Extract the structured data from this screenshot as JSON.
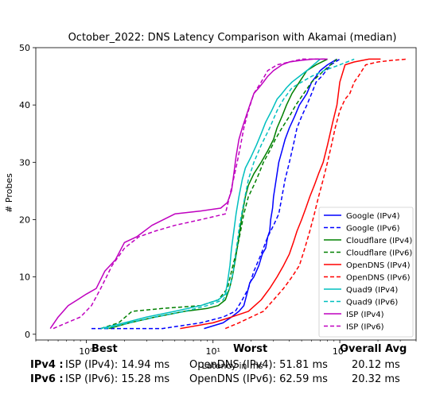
{
  "chart_data": {
    "type": "line",
    "title": "October_2022: DNS Latency Comparison with Akamai (median)",
    "xlabel": "Latency in ms",
    "ylabel": "# Probes",
    "xscale": "log",
    "xlim": [
      0.4,
      400
    ],
    "ylim": [
      -1,
      50
    ],
    "yticks": [
      0,
      10,
      20,
      30,
      40,
      50
    ],
    "xticks": [
      1,
      10,
      100
    ],
    "xtick_labels": [
      "10⁰",
      "10¹",
      "10²"
    ],
    "legend_position": "lower-right",
    "series": [
      {
        "name": "Google (IPv4)",
        "color": "#0000ff",
        "dash": "solid",
        "x": [
          8.5,
          12,
          14,
          16,
          17.5,
          18.5,
          19.5,
          21,
          23,
          24.5,
          26,
          27,
          28,
          28.5,
          29.5,
          30,
          31,
          32,
          33,
          35,
          37,
          40,
          44,
          48,
          55,
          60,
          65,
          70,
          80,
          95
        ],
        "y": [
          1,
          2,
          3,
          4,
          5,
          7,
          9,
          10,
          12,
          14,
          15,
          17,
          18,
          20,
          22,
          24,
          26,
          28,
          30,
          32,
          34,
          36,
          38,
          40,
          42,
          44,
          45,
          46,
          47,
          48
        ]
      },
      {
        "name": "Google (IPv6)",
        "color": "#0000ff",
        "dash": "dashed",
        "x": [
          1.1,
          4,
          8,
          12,
          15,
          17,
          19,
          21,
          24,
          27,
          30,
          33,
          35,
          37,
          40,
          43,
          46,
          50,
          55,
          60,
          65,
          72,
          85,
          100
        ],
        "y": [
          1,
          1,
          2,
          3,
          4,
          6,
          8,
          11,
          14,
          17,
          19,
          21,
          24,
          27,
          30,
          33,
          36,
          38,
          40,
          42,
          44,
          45,
          47,
          48
        ]
      },
      {
        "name": "Cloudflare (IPv4)",
        "color": "#008000",
        "dash": "solid",
        "x": [
          1.5,
          2.2,
          3.5,
          6,
          9,
          11,
          12.5,
          13.5,
          14.2,
          15,
          16,
          17,
          18,
          19,
          21,
          24,
          27,
          30,
          32,
          35,
          38,
          42,
          48,
          55,
          65,
          80
        ],
        "y": [
          1,
          2,
          3,
          4,
          4.5,
          5,
          6,
          8,
          10,
          13,
          17,
          21,
          24,
          26,
          28,
          30,
          32,
          34,
          36,
          38,
          40,
          42,
          44,
          46,
          47,
          48
        ]
      },
      {
        "name": "Cloudflare (IPv6)",
        "color": "#008000",
        "dash": "dashed",
        "x": [
          1.3,
          1.8,
          2.3,
          4,
          8,
          11,
          13,
          14,
          15.5,
          16.5,
          17.5,
          19,
          21,
          23,
          25,
          28,
          31,
          35,
          40,
          45,
          52,
          60,
          75,
          95
        ],
        "y": [
          1,
          2,
          4,
          4.5,
          5,
          6,
          8,
          11,
          15,
          18,
          21,
          24,
          26,
          28,
          30,
          32,
          34,
          36,
          38,
          40,
          42,
          44,
          46,
          48
        ]
      },
      {
        "name": "OpenDNS (IPv4)",
        "color": "#ff0000",
        "dash": "solid",
        "x": [
          5.5,
          10,
          14,
          19,
          24,
          28,
          32,
          36,
          40,
          43,
          46,
          50,
          54,
          58,
          63,
          68,
          74,
          80,
          88,
          95,
          100,
          110,
          130,
          170,
          210
        ],
        "y": [
          1,
          2,
          3,
          4,
          6,
          8,
          10,
          12,
          14,
          16,
          18,
          20,
          22,
          24,
          26,
          28,
          30,
          33,
          37,
          40,
          44,
          47,
          47.5,
          48,
          48
        ]
      },
      {
        "name": "OpenDNS (IPv6)",
        "color": "#ff0000",
        "dash": "dashed",
        "x": [
          12.5,
          16,
          20,
          25,
          30,
          36,
          42,
          48,
          53,
          58,
          63,
          68,
          74,
          80,
          86,
          92,
          100,
          110,
          120,
          130,
          140,
          160,
          200,
          260,
          340
        ],
        "y": [
          1,
          2,
          3,
          4,
          6,
          8,
          10,
          12,
          15,
          18,
          21,
          24,
          27,
          30,
          33,
          36,
          39,
          41,
          42,
          44,
          45,
          47,
          47.5,
          47.8,
          48
        ]
      },
      {
        "name": "Quad9 (IPv4)",
        "color": "#00bfbf",
        "dash": "solid",
        "x": [
          1.3,
          2,
          3,
          5,
          8,
          11,
          12.5,
          13,
          13.6,
          14,
          14.6,
          15.2,
          16,
          17,
          18,
          20,
          22,
          24,
          26,
          29,
          32,
          35,
          38,
          42,
          48,
          55,
          70
        ],
        "y": [
          1,
          2,
          3,
          4,
          5,
          6,
          7,
          9,
          12,
          15,
          18,
          21,
          24,
          27,
          29,
          31,
          33,
          35,
          37,
          39,
          41,
          42,
          43,
          44,
          45,
          46,
          48
        ]
      },
      {
        "name": "Quad9 (IPv6)",
        "color": "#00bfbf",
        "dash": "dashed",
        "x": [
          1.4,
          2.2,
          3.5,
          6,
          9,
          12,
          13.5,
          14.5,
          15.3,
          16.2,
          17.5,
          19,
          21,
          24,
          28,
          32,
          36,
          42,
          50,
          60,
          75,
          100,
          130
        ],
        "y": [
          1,
          2,
          3,
          4,
          5,
          6,
          8,
          11,
          15,
          19,
          23,
          27,
          30,
          33,
          36,
          39,
          41,
          43,
          44,
          45,
          46,
          47,
          48
        ]
      },
      {
        "name": "ISP (IPv4)",
        "color": "#bf00bf",
        "dash": "solid",
        "x": [
          0.52,
          0.6,
          0.72,
          0.85,
          1.0,
          1.2,
          1.4,
          1.7,
          2.0,
          2.5,
          3.3,
          5,
          8,
          11.5,
          13,
          14,
          14.6,
          15.2,
          16,
          17,
          18.2,
          19.5,
          21,
          23,
          25,
          27,
          30,
          35,
          40,
          50,
          62,
          80
        ],
        "y": [
          1,
          3,
          5,
          6,
          7,
          8,
          11,
          13,
          16,
          17,
          19,
          21,
          21.5,
          22,
          23,
          25,
          28,
          31,
          34,
          36,
          38,
          40,
          42,
          43,
          44,
          45,
          46,
          47,
          47.5,
          47.8,
          48,
          48
        ]
      },
      {
        "name": "ISP (IPv6)",
        "color": "#bf00bf",
        "dash": "dashed",
        "x": [
          0.55,
          0.7,
          0.9,
          1.1,
          1.3,
          1.6,
          2.0,
          2.6,
          3.5,
          5,
          8,
          12.5,
          13.5,
          14.5,
          15.5,
          16.5,
          17.5,
          19,
          21,
          24,
          27,
          32,
          40,
          50,
          62,
          80
        ],
        "y": [
          1,
          2,
          3,
          5,
          8,
          12,
          15,
          17,
          18,
          19,
          20,
          21,
          24,
          27,
          30,
          33,
          36,
          39,
          42,
          44,
          46,
          47,
          47.5,
          48,
          48,
          48
        ]
      }
    ]
  },
  "stats": {
    "header_best": "Best",
    "header_worst": "Worst",
    "header_avg": "Overall Avg",
    "rows": [
      {
        "label": "IPv4 :",
        "best": "ISP (IPv4): 14.94 ms",
        "worst": "OpenDNS (IPv4): 51.81 ms",
        "avg": "20.12 ms"
      },
      {
        "label": "IPv6 :",
        "best": "ISP (IPv6): 15.28 ms",
        "worst": "OpenDNS (IPv6): 62.59 ms",
        "avg": "20.32 ms"
      }
    ]
  }
}
